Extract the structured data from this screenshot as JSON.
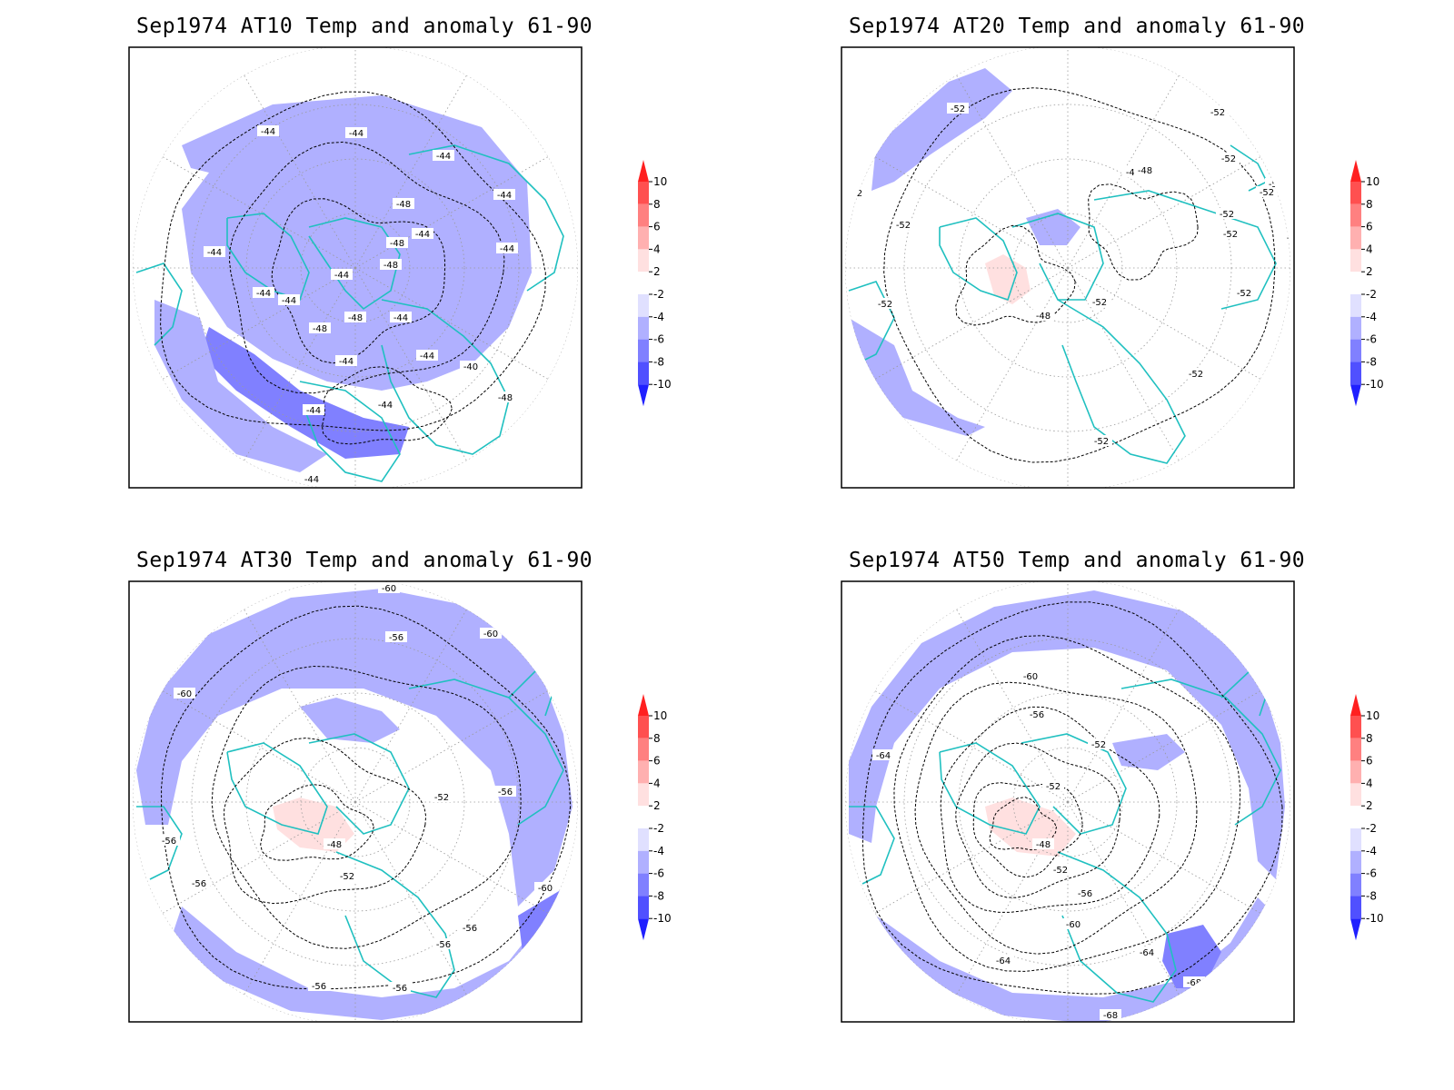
{
  "figure": {
    "panels": [
      {
        "title": "Sep1974 AT10 Temp and anomaly 61-90",
        "contour_labels": [
          "-44",
          "-44",
          "-44",
          "-48",
          "-44",
          "-44",
          "-48",
          "-44",
          "-44",
          "-44",
          "-44",
          "-48",
          "-48",
          "-44",
          "-44",
          "-44",
          "-44",
          "-40",
          "-48",
          "-44",
          "-44",
          "-44",
          "-48"
        ]
      },
      {
        "title": "Sep1974 AT20 Temp and anomaly 61-90",
        "contour_labels": [
          "-52",
          "-52",
          "-48",
          "-48",
          "-52",
          "-52",
          "-52",
          "-52",
          "-52",
          "-52",
          "-52",
          "-52",
          "-48",
          "-52",
          "-52",
          "-52",
          "-52",
          "-52"
        ]
      },
      {
        "title": "Sep1974 AT30 Temp and anomaly 61-90",
        "contour_labels": [
          "-60",
          "-56",
          "-60",
          "-60",
          "-52",
          "-56",
          "-56",
          "-48",
          "-52",
          "-56",
          "-60",
          "-56",
          "-56",
          "-56",
          "-56"
        ]
      },
      {
        "title": "Sep1974 AT50 Temp and anomaly 61-90",
        "contour_labels": [
          "-60",
          "-56",
          "-52",
          "-64",
          "-52",
          "-48",
          "-52",
          "-56",
          "-60",
          "-64",
          "-64",
          "-68",
          "-68"
        ]
      }
    ],
    "colorbar": {
      "tick_labels": [
        "10",
        "8",
        "6",
        "4",
        "2",
        "-2",
        "-4",
        "-6",
        "-8",
        "-10"
      ],
      "colors": [
        "#ff2020",
        "#ff5050",
        "#ff8080",
        "#ffb0b0",
        "#ffe0e0",
        "#ffffff",
        "#e0e0ff",
        "#b0b0ff",
        "#8080ff",
        "#5050ff",
        "#2020ff"
      ]
    },
    "colors": {
      "coastline": "#20c0c0",
      "contour": "#000000",
      "grid": "#9a9a9a"
    }
  }
}
